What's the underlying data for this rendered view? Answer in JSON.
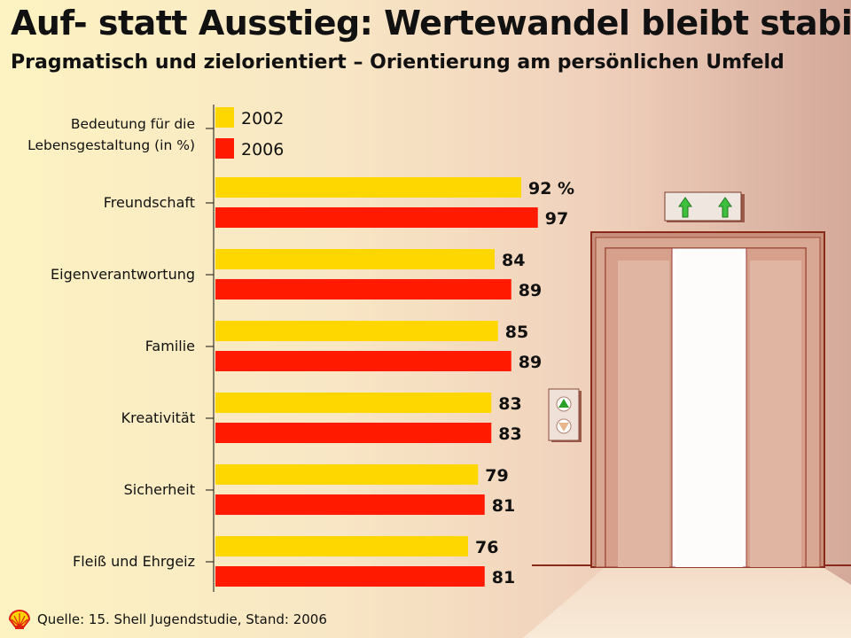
{
  "header": {
    "title": "Auf- statt Ausstieg: Wertewandel bleibt stabil",
    "subtitle": "Pragmatisch und zielorientiert – Orientierung am persönlichen Umfeld"
  },
  "footer": {
    "source": "Quelle: 15. Shell Jugendstudie, Stand: 2006",
    "logo_icon": "shell-logo-icon"
  },
  "colors": {
    "series_2002": "#ffd700",
    "series_2006": "#ff1a00"
  },
  "chart_data": {
    "type": "bar",
    "orientation": "horizontal",
    "title": "Auf- statt Ausstieg: Wertewandel bleibt stabil",
    "subtitle": "Pragmatisch und zielorientiert – Orientierung am persönlichen Umfeld",
    "legend_title_lines": [
      "Bedeutung für die",
      "Lebensgestaltung (in %)"
    ],
    "legend_position": "top-left",
    "categories": [
      "Freundschaft",
      "Eigenverantwortung",
      "Familie",
      "Kreativität",
      "Sicherheit",
      "Fleiß und Ehrgeiz"
    ],
    "series": [
      {
        "name": "2002",
        "values": [
          92,
          84,
          85,
          83,
          79,
          76
        ],
        "labels": [
          "92 %",
          "84",
          "85",
          "83",
          "79",
          "76"
        ]
      },
      {
        "name": "2006",
        "values": [
          97,
          89,
          89,
          83,
          81,
          81
        ],
        "labels": [
          "97",
          "89",
          "89",
          "83",
          "81",
          "81"
        ]
      }
    ],
    "xlim": [
      0,
      100
    ],
    "grid": false
  },
  "decoration": {
    "elevator_icon": "elevator-doors-icon",
    "up_arrows_icon": "up-arrows-indicator-icon",
    "call_buttons_icon": "elevator-call-buttons-icon"
  }
}
